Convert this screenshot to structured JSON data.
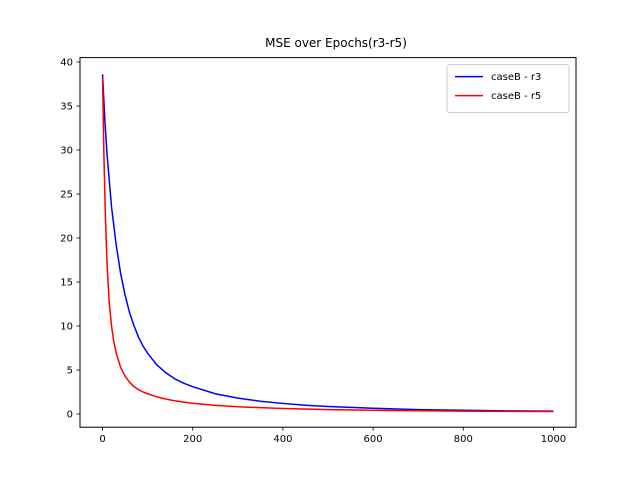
{
  "chart_data": {
    "type": "line",
    "title": "MSE over Epochs(r3-r5)",
    "xlabel": "",
    "ylabel": "",
    "xlim": [
      -50,
      1050
    ],
    "ylim": [
      -1.5,
      40.5
    ],
    "xticks": [
      0,
      200,
      400,
      600,
      800,
      1000
    ],
    "yticks": [
      0,
      5,
      10,
      15,
      20,
      25,
      30,
      35,
      40
    ],
    "grid": false,
    "legend_position": "top-right",
    "series": [
      {
        "name": "caseB - r3",
        "color": "#0000ff",
        "x": [
          0,
          5,
          10,
          20,
          30,
          40,
          50,
          60,
          70,
          80,
          90,
          100,
          120,
          140,
          160,
          180,
          200,
          250,
          300,
          350,
          400,
          450,
          500,
          600,
          700,
          800,
          900,
          1000
        ],
        "y": [
          38.6,
          33.5,
          29.5,
          23.5,
          19.3,
          16.0,
          13.5,
          11.5,
          10.0,
          8.7,
          7.7,
          6.9,
          5.6,
          4.7,
          4.0,
          3.5,
          3.1,
          2.3,
          1.8,
          1.45,
          1.2,
          1.0,
          0.85,
          0.65,
          0.5,
          0.42,
          0.36,
          0.32
        ]
      },
      {
        "name": "caseB - r5",
        "color": "#ff0000",
        "x": [
          0,
          3,
          6,
          10,
          15,
          20,
          25,
          30,
          40,
          50,
          60,
          70,
          80,
          90,
          100,
          120,
          140,
          160,
          180,
          200,
          250,
          300,
          400,
          500,
          600,
          700,
          800,
          900,
          1000
        ],
        "y": [
          38.3,
          29.5,
          23.0,
          17.0,
          12.5,
          10.0,
          8.2,
          7.0,
          5.3,
          4.3,
          3.6,
          3.1,
          2.75,
          2.5,
          2.3,
          1.95,
          1.7,
          1.5,
          1.35,
          1.22,
          0.98,
          0.82,
          0.62,
          0.5,
          0.42,
          0.37,
          0.33,
          0.3,
          0.28
        ]
      }
    ]
  }
}
